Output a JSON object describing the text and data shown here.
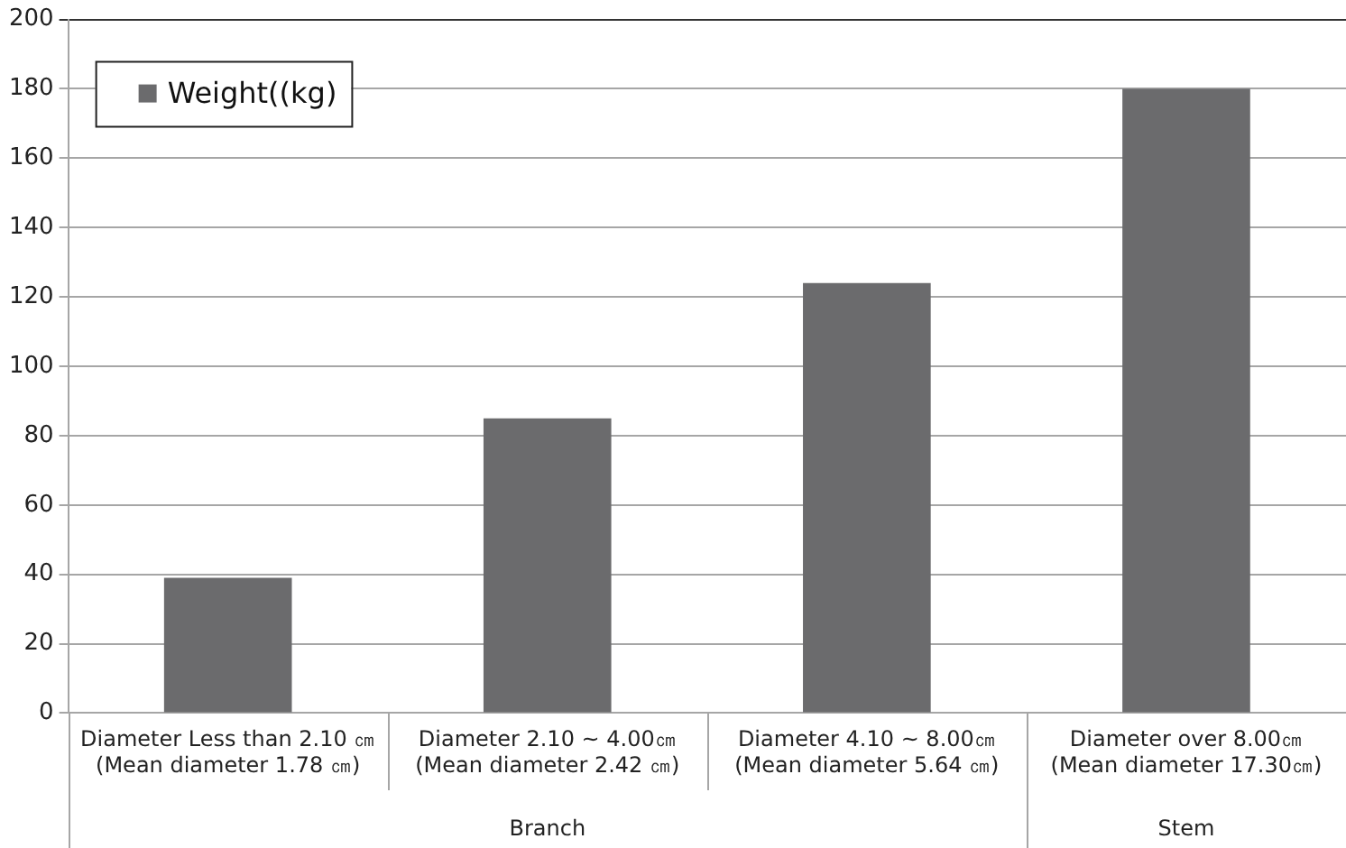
{
  "chart_data": {
    "type": "bar",
    "categories": [
      "Diameter Less than 2.10 ㎝ (Mean diameter 1.78 ㎝)",
      "Diameter 2.10 ~ 4.00㎝ (Mean diameter 2.42 ㎝)",
      "Diameter 4.10 ~ 8.00㎝ (Mean diameter 5.64 ㎝)",
      "Diameter over 8.00㎝ (Mean diameter 17.30㎝)"
    ],
    "series": [
      {
        "name": "Weight((kg)",
        "color": "#6b6b6d",
        "values": [
          39,
          85,
          124,
          180
        ]
      }
    ],
    "ylim": [
      0,
      200
    ],
    "yticks": [
      0,
      20,
      40,
      60,
      80,
      100,
      120,
      140,
      160,
      180,
      200
    ],
    "grid": "y",
    "legend": "top left",
    "annotations": [
      "Branch",
      "Stem"
    ]
  }
}
